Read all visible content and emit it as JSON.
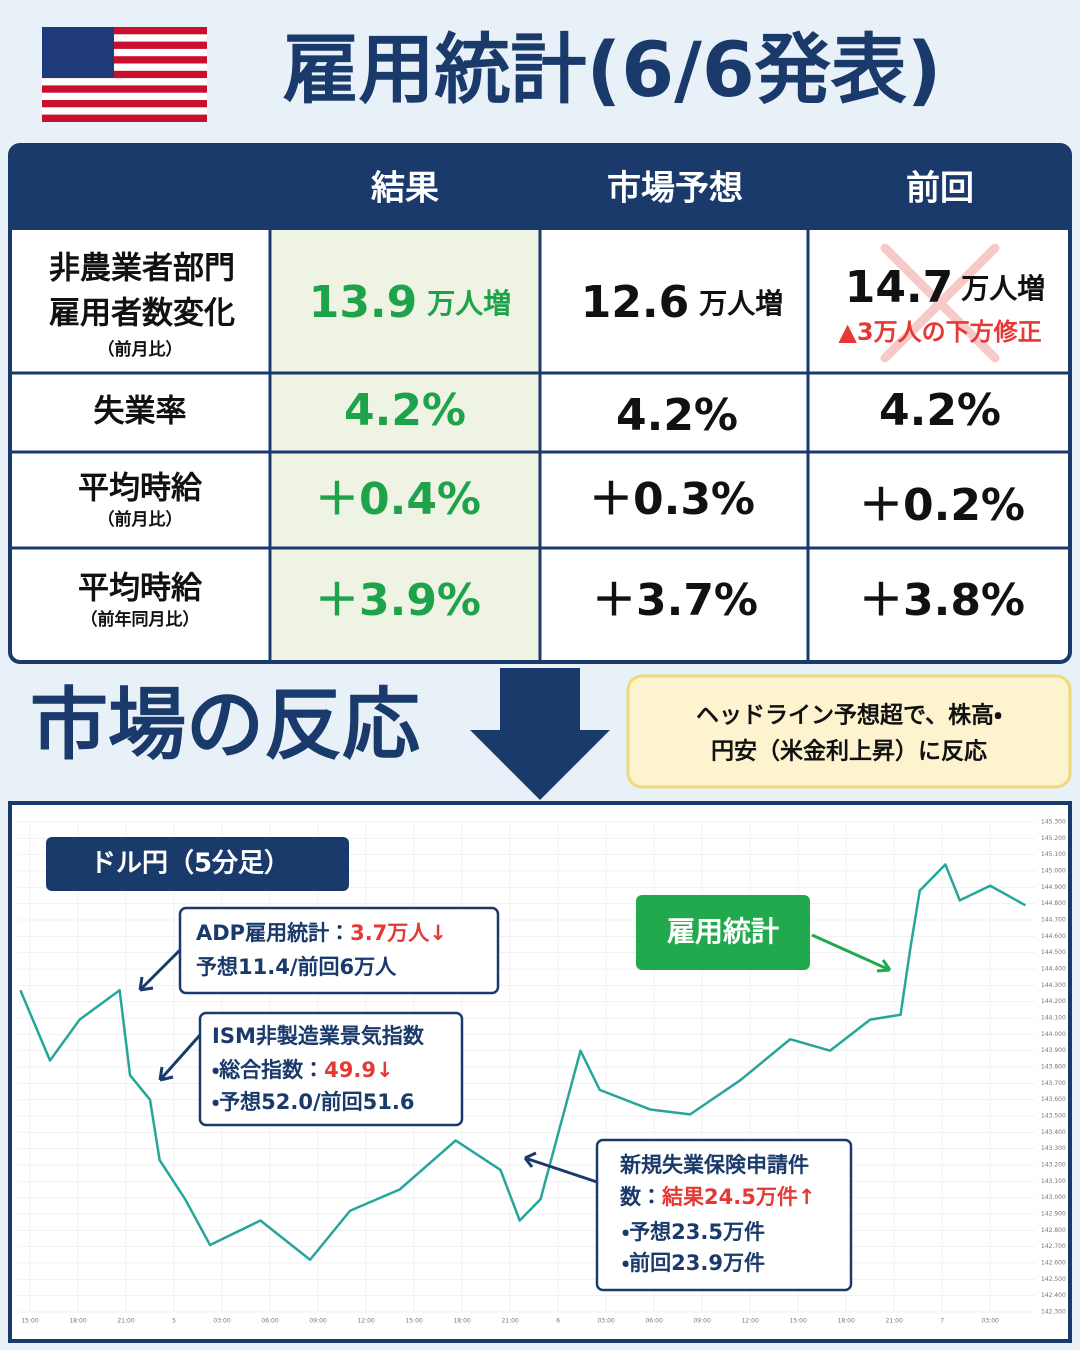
{
  "title": "雇用統計(6/6発表)",
  "table": {
    "columns": [
      "結果",
      "市場予想",
      "前回"
    ],
    "rows": [
      {
        "label": [
          "非農業者部門",
          "雇用者数変化"
        ],
        "sub": "（前月比）",
        "cells": [
          {
            "value": "13.9",
            "unit": "万人増"
          },
          {
            "value": "12.6",
            "unit": "万人増"
          },
          {
            "value": "14.7",
            "unit": "万人増",
            "note": "▲3万人の下方修正"
          }
        ]
      },
      {
        "label": [
          "失業率"
        ],
        "cells": [
          {
            "value": "4.2%"
          },
          {
            "value": "4.2%"
          },
          {
            "value": "4.2%"
          }
        ]
      },
      {
        "label": [
          "平均時給"
        ],
        "sub": "（前月比）",
        "cells": [
          {
            "value": "＋0.4%"
          },
          {
            "value": "＋0.3%"
          },
          {
            "value": "＋0.2%"
          }
        ]
      },
      {
        "label": [
          "平均時給"
        ],
        "sub": "（前年同月比）",
        "cells": [
          {
            "value": "＋3.9%"
          },
          {
            "value": "＋3.7%"
          },
          {
            "value": "＋3.8%"
          }
        ]
      }
    ]
  },
  "reaction": {
    "heading": "市場の反応",
    "note": [
      "ヘッドライン予想超で、株高・",
      "円安（米金利上昇）に反応"
    ]
  },
  "chart_data": {
    "type": "line",
    "title": "ドル円（5分足）",
    "color": "#26a69a",
    "x": [
      -0.6,
      1.25,
      3.1,
      5.6,
      6.25,
      7.5,
      8.1,
      9.7,
      11.25,
      14.4,
      17.5,
      20,
      23.1,
      26.6,
      29.4,
      30.6,
      31.9,
      34.4,
      35.6,
      38.75,
      41.25,
      44.4,
      47.5,
      50,
      52.5,
      54.4,
      55,
      55.6,
      57.2,
      58.1,
      60,
      62.2
    ],
    "values": [
      144.27,
      143.84,
      144.09,
      144.27,
      143.75,
      143.6,
      143.23,
      142.99,
      142.71,
      142.86,
      142.62,
      142.92,
      143.05,
      143.35,
      143.17,
      142.86,
      142.99,
      143.9,
      143.66,
      143.54,
      143.51,
      143.72,
      143.97,
      143.9,
      144.09,
      144.12,
      144.52,
      144.88,
      145.04,
      144.82,
      144.91,
      144.79
    ],
    "xlim": [
      -0.75,
      62.8
    ],
    "xticks": [
      {
        "value": 0,
        "label": "15:00"
      },
      {
        "value": 3,
        "label": "18:00"
      },
      {
        "value": 6,
        "label": "21:00"
      },
      {
        "value": 9,
        "label": "5"
      },
      {
        "value": 12,
        "label": "03:00"
      },
      {
        "value": 15,
        "label": "06:00"
      },
      {
        "value": 18,
        "label": "09:00"
      },
      {
        "value": 21,
        "label": "12:00"
      },
      {
        "value": 24,
        "label": "15:00"
      },
      {
        "value": 27,
        "label": "18:00"
      },
      {
        "value": 30,
        "label": "21:00"
      },
      {
        "value": 33,
        "label": "6"
      },
      {
        "value": 36,
        "label": "03:00"
      },
      {
        "value": 39,
        "label": "06:00"
      },
      {
        "value": 42,
        "label": "09:00"
      },
      {
        "value": 45,
        "label": "12:00"
      },
      {
        "value": 48,
        "label": "15:00"
      },
      {
        "value": 51,
        "label": "18:00"
      },
      {
        "value": 54,
        "label": "21:00"
      },
      {
        "value": 57,
        "label": "7"
      },
      {
        "value": 60,
        "label": "03:00"
      }
    ],
    "ylim": [
      142.3,
      145.3
    ],
    "yticks": [
      {
        "value": 142.3,
        "label": "142.300"
      },
      {
        "value": 142.4,
        "label": "142.400"
      },
      {
        "value": 142.5,
        "label": "142.500"
      },
      {
        "value": 142.6,
        "label": "142.600"
      },
      {
        "value": 142.7,
        "label": "142.700"
      },
      {
        "value": 142.8,
        "label": "142.800"
      },
      {
        "value": 142.9,
        "label": "142.900"
      },
      {
        "value": 143.0,
        "label": "143.000"
      },
      {
        "value": 143.1,
        "label": "143.100"
      },
      {
        "value": 143.2,
        "label": "143.200"
      },
      {
        "value": 143.3,
        "label": "143.300"
      },
      {
        "value": 143.4,
        "label": "143.400"
      },
      {
        "value": 143.5,
        "label": "143.500"
      },
      {
        "value": 143.6,
        "label": "143.600"
      },
      {
        "value": 143.7,
        "label": "143.700"
      },
      {
        "value": 143.8,
        "label": "143.800"
      },
      {
        "value": 143.9,
        "label": "143.900"
      },
      {
        "value": 144.0,
        "label": "144.000"
      },
      {
        "value": 144.1,
        "label": "144.100"
      },
      {
        "value": 144.2,
        "label": "144.200"
      },
      {
        "value": 144.3,
        "label": "144.300"
      },
      {
        "value": 144.4,
        "label": "144.400"
      },
      {
        "value": 144.5,
        "label": "144.500"
      },
      {
        "value": 144.6,
        "label": "144.600"
      },
      {
        "value": 144.7,
        "label": "144.700"
      },
      {
        "value": 144.8,
        "label": "144.800"
      },
      {
        "value": 144.9,
        "label": "144.900"
      },
      {
        "value": 145.0,
        "label": "145.000"
      },
      {
        "value": 145.1,
        "label": "145.100"
      },
      {
        "value": 145.2,
        "label": "145.200"
      },
      {
        "value": 145.3,
        "label": "145.300"
      }
    ],
    "annotations": [
      {
        "lines": [
          [
            "ADP雇用統計：",
            "3.7万人↓"
          ],
          [
            "予想11.4/前回6万人"
          ]
        ]
      },
      {
        "lines": [
          [
            "ISM非製造業景気指数"
          ],
          [
            "・総合指数：",
            "49.9↓"
          ],
          [
            "・予想52.0/前回51.6"
          ]
        ]
      },
      {
        "lines": [
          [
            "新規失業保険申請件"
          ],
          [
            "数：",
            "結果24.5万件↑"
          ],
          [
            "・予想23.5万件"
          ],
          [
            "・前回23.9万件"
          ]
        ]
      },
      {
        "lines": [
          [
            "雇用統計"
          ]
        ]
      }
    ]
  }
}
